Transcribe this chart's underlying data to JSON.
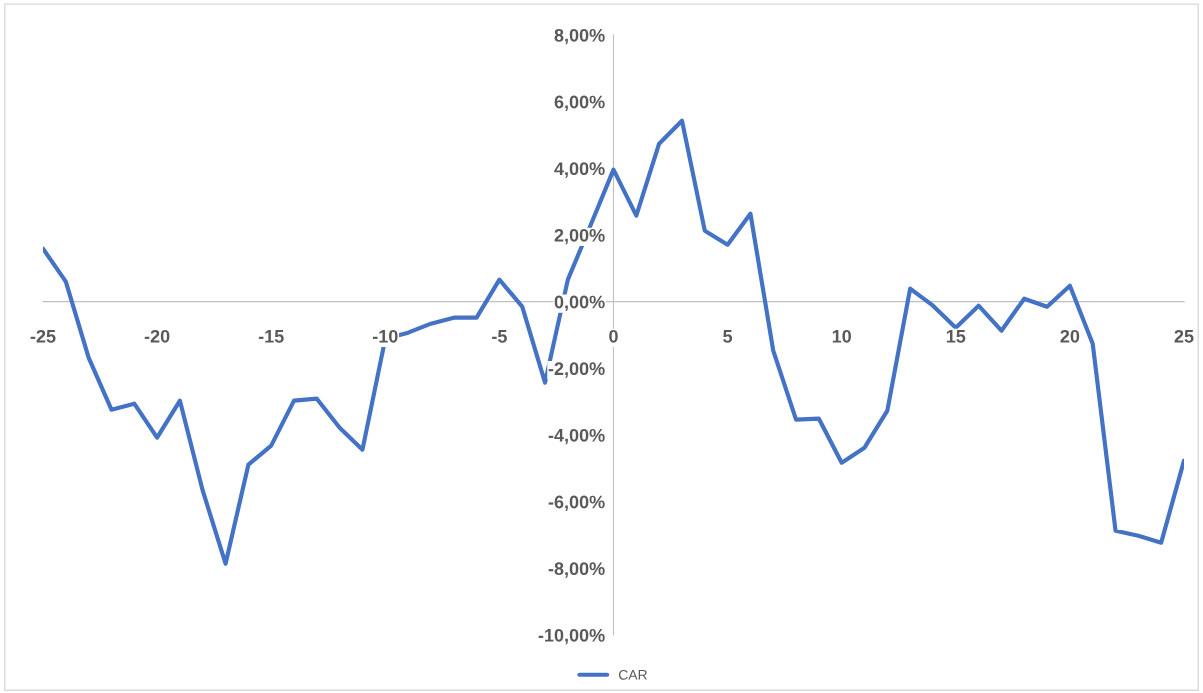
{
  "chart_data": {
    "type": "line",
    "x": [
      -25,
      -24,
      -23,
      -22,
      -21,
      -20,
      -19,
      -18,
      -17,
      -16,
      -15,
      -14,
      -13,
      -12,
      -11,
      -10,
      -9,
      -8,
      -7,
      -6,
      -5,
      -4,
      -3,
      -2,
      -1,
      0,
      1,
      2,
      3,
      4,
      5,
      6,
      7,
      8,
      9,
      10,
      11,
      12,
      13,
      14,
      15,
      16,
      17,
      18,
      19,
      20,
      21,
      22,
      23,
      24,
      25
    ],
    "series": [
      {
        "name": "CAR",
        "color": "#4472c4",
        "values": [
          1.59,
          0.6,
          -1.68,
          -3.24,
          -3.06,
          -4.08,
          -2.97,
          -5.67,
          -7.86,
          -4.89,
          -4.32,
          -2.97,
          -2.91,
          -3.78,
          -4.44,
          -1.11,
          -0.93,
          -0.66,
          -0.48,
          -0.48,
          0.66,
          -0.15,
          -2.43,
          0.66,
          2.3,
          3.96,
          2.58,
          4.74,
          5.43,
          2.13,
          1.71,
          2.64,
          -1.47,
          -3.54,
          -3.51,
          -4.83,
          -4.38,
          -3.27,
          0.39,
          -0.12,
          -0.78,
          -0.12,
          -0.87,
          0.09,
          -0.15,
          0.48,
          -1.26,
          -6.87,
          -7.02,
          -7.23,
          -4.77
        ]
      }
    ],
    "xlim": [
      -25,
      25
    ],
    "xticks": [
      -25,
      -20,
      -15,
      -10,
      -5,
      0,
      5,
      10,
      15,
      20,
      25
    ],
    "ylim": [
      -10,
      8
    ],
    "yticks": [
      {
        "value": -10,
        "label": "-10,00%"
      },
      {
        "value": -8,
        "label": "-8,00%"
      },
      {
        "value": -6,
        "label": "-6,00%"
      },
      {
        "value": -4,
        "label": "-4,00%"
      },
      {
        "value": -2,
        "label": "-2,00%"
      },
      {
        "value": 0,
        "label": "0,00%"
      },
      {
        "value": 2,
        "label": "2,00%"
      },
      {
        "value": 4,
        "label": "4,00%"
      },
      {
        "value": 6,
        "label": "6,00%"
      },
      {
        "value": 8,
        "label": "8,00%"
      }
    ],
    "grid": false,
    "legend": "bottom",
    "marker": "none",
    "line_style": "solid"
  }
}
